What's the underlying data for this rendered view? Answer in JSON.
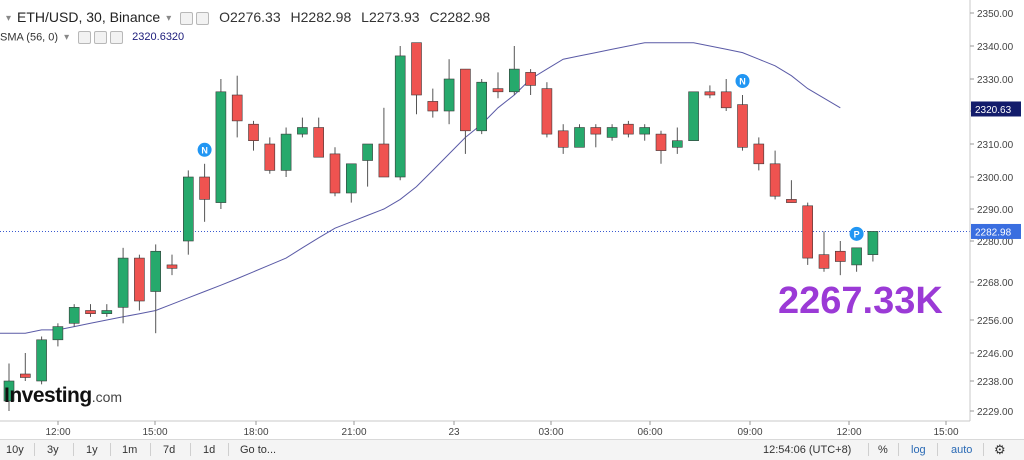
{
  "legend": {
    "symbol": "ETH/USD, 30, Binance",
    "open_label": "O",
    "open": "2276.33",
    "high_label": "H",
    "high": "2282.98",
    "low_label": "L",
    "low": "2273.93",
    "close_label": "C",
    "close": "2282.98",
    "sma_label": "SMA (56, 0)",
    "sma_value": "2320.6320"
  },
  "big_value": "2267.33K",
  "logo": {
    "text": "Investing",
    "suffix": ".com"
  },
  "toolbar": {
    "ranges": [
      "10y",
      "3y",
      "1y",
      "1m",
      "7d",
      "1d"
    ],
    "goto": "Go to...",
    "time": "12:54:06 (UTC+8)",
    "percent": "%",
    "log": "log",
    "auto": "auto"
  },
  "colors": {
    "up": "#26a96c",
    "down": "#ef5350",
    "wick": "#555555",
    "sma": "#5a5aa6",
    "price_line": "#3a5ad0",
    "sma_tag": "#131c6b",
    "price_tag": "#3a6ee0",
    "marker": "#2196f3"
  },
  "chart_data": {
    "type": "candlestick",
    "y_axis_ticks": [
      2350,
      2340,
      2330,
      2320,
      2310,
      2300,
      2290,
      2280,
      2268,
      2256,
      2246,
      2238,
      2229
    ],
    "y_axis_tick_labels": [
      "2350.00",
      "2340.00",
      "2330.00",
      "2320.00",
      "2310.00",
      "2300.00",
      "2290.00",
      "2280.00",
      "2268.00",
      "2256.00",
      "2246.00",
      "2238.00",
      "2229.00"
    ],
    "x_axis_labels": [
      "12:00",
      "15:00",
      "18:00",
      "21:00",
      "23",
      "03:00",
      "06:00",
      "09:00",
      "12:00",
      "15:00"
    ],
    "last_price": 2282.98,
    "last_price_label": "2282.98",
    "sma_last": 2320.63,
    "sma_last_label": "2320.63",
    "candles": [
      {
        "o": 2232,
        "h": 2243,
        "l": 2229,
        "c": 2238
      },
      {
        "o": 2240,
        "h": 2246,
        "l": 2238,
        "c": 2239
      },
      {
        "o": 2238,
        "h": 2251,
        "l": 2237,
        "c": 2250
      },
      {
        "o": 2250,
        "h": 2255,
        "l": 2248,
        "c": 2254
      },
      {
        "o": 2255,
        "h": 2261,
        "l": 2254,
        "c": 2260
      },
      {
        "o": 2259,
        "h": 2261,
        "l": 2257,
        "c": 2258
      },
      {
        "o": 2258,
        "h": 2261,
        "l": 2257,
        "c": 2259
      },
      {
        "o": 2260,
        "h": 2278,
        "l": 2255,
        "c": 2275
      },
      {
        "o": 2275,
        "h": 2276,
        "l": 2259,
        "c": 2262
      },
      {
        "o": 2265,
        "h": 2279,
        "l": 2252,
        "c": 2277
      },
      {
        "o": 2273,
        "h": 2276,
        "l": 2270,
        "c": 2272
      },
      {
        "o": 2280,
        "h": 2302,
        "l": 2276,
        "c": 2300
      },
      {
        "o": 2300,
        "h": 2304,
        "l": 2286,
        "c": 2293
      },
      {
        "o": 2292,
        "h": 2330,
        "l": 2290,
        "c": 2326
      },
      {
        "o": 2325,
        "h": 2331,
        "l": 2312,
        "c": 2317
      },
      {
        "o": 2316,
        "h": 2317,
        "l": 2308,
        "c": 2311
      },
      {
        "o": 2310,
        "h": 2312,
        "l": 2301,
        "c": 2302
      },
      {
        "o": 2302,
        "h": 2315,
        "l": 2300,
        "c": 2313
      },
      {
        "o": 2313,
        "h": 2318,
        "l": 2312,
        "c": 2315
      },
      {
        "o": 2315,
        "h": 2318,
        "l": 2306,
        "c": 2306
      },
      {
        "o": 2307,
        "h": 2309,
        "l": 2294,
        "c": 2295
      },
      {
        "o": 2295,
        "h": 2303,
        "l": 2292,
        "c": 2304
      },
      {
        "o": 2305,
        "h": 2310,
        "l": 2297,
        "c": 2310
      },
      {
        "o": 2310,
        "h": 2321,
        "l": 2300,
        "c": 2300
      },
      {
        "o": 2300,
        "h": 2340,
        "l": 2299,
        "c": 2337
      },
      {
        "o": 2341,
        "h": 2341,
        "l": 2319,
        "c": 2325
      },
      {
        "o": 2323,
        "h": 2327,
        "l": 2318,
        "c": 2320
      },
      {
        "o": 2320,
        "h": 2336,
        "l": 2316,
        "c": 2330
      },
      {
        "o": 2333,
        "h": 2333,
        "l": 2307,
        "c": 2314
      },
      {
        "o": 2314,
        "h": 2330,
        "l": 2313,
        "c": 2329
      },
      {
        "o": 2327,
        "h": 2332,
        "l": 2324,
        "c": 2326
      },
      {
        "o": 2326,
        "h": 2340,
        "l": 2325,
        "c": 2333
      },
      {
        "o": 2332,
        "h": 2333,
        "l": 2325,
        "c": 2328
      },
      {
        "o": 2327,
        "h": 2329,
        "l": 2312,
        "c": 2313
      },
      {
        "o": 2314,
        "h": 2316,
        "l": 2307,
        "c": 2309
      },
      {
        "o": 2309,
        "h": 2316,
        "l": 2309,
        "c": 2315
      },
      {
        "o": 2315,
        "h": 2316,
        "l": 2309,
        "c": 2313
      },
      {
        "o": 2312,
        "h": 2316,
        "l": 2311,
        "c": 2315
      },
      {
        "o": 2316,
        "h": 2317,
        "l": 2312,
        "c": 2313
      },
      {
        "o": 2313,
        "h": 2316,
        "l": 2311,
        "c": 2315
      },
      {
        "o": 2313,
        "h": 2314,
        "l": 2304,
        "c": 2308
      },
      {
        "o": 2309,
        "h": 2315,
        "l": 2307,
        "c": 2311
      },
      {
        "o": 2311,
        "h": 2326,
        "l": 2311,
        "c": 2326
      },
      {
        "o": 2326,
        "h": 2328,
        "l": 2324,
        "c": 2325
      },
      {
        "o": 2326,
        "h": 2330,
        "l": 2320,
        "c": 2321
      },
      {
        "o": 2322,
        "h": 2325,
        "l": 2308,
        "c": 2309
      },
      {
        "o": 2310,
        "h": 2312,
        "l": 2302,
        "c": 2304
      },
      {
        "o": 2304,
        "h": 2308,
        "l": 2293,
        "c": 2294
      },
      {
        "o": 2293,
        "h": 2299,
        "l": 2292,
        "c": 2292
      },
      {
        "o": 2291,
        "h": 2292,
        "l": 2273,
        "c": 2275
      },
      {
        "o": 2276,
        "h": 2283,
        "l": 2271,
        "c": 2272
      },
      {
        "o": 2277,
        "h": 2280,
        "l": 2270,
        "c": 2274
      },
      {
        "o": 2273,
        "h": 2278,
        "l": 2271,
        "c": 2278
      },
      {
        "o": 2276,
        "h": 2283,
        "l": 2274,
        "c": 2283
      }
    ],
    "sma": [
      2252,
      2252,
      2253,
      2253,
      2254,
      2255,
      2256,
      2257,
      2258,
      2259,
      2261,
      2263,
      2265,
      2267,
      2269,
      2271,
      2273,
      2275,
      2278,
      2281,
      2284,
      2286,
      2288,
      2290,
      2293,
      2297,
      2302,
      2307,
      2312,
      2316,
      2321,
      2325,
      2330,
      2333,
      2336,
      2337,
      2338,
      2339,
      2340,
      2341,
      2341,
      2341,
      2341,
      2340,
      2339,
      2338,
      2336,
      2334,
      2331,
      2327,
      2324,
      2321
    ],
    "markers": [
      {
        "candle": 12,
        "label": "N",
        "position": "above"
      },
      {
        "candle": 45,
        "label": "N",
        "position": "above"
      },
      {
        "candle": 52,
        "label": "P",
        "position": "above"
      }
    ]
  }
}
